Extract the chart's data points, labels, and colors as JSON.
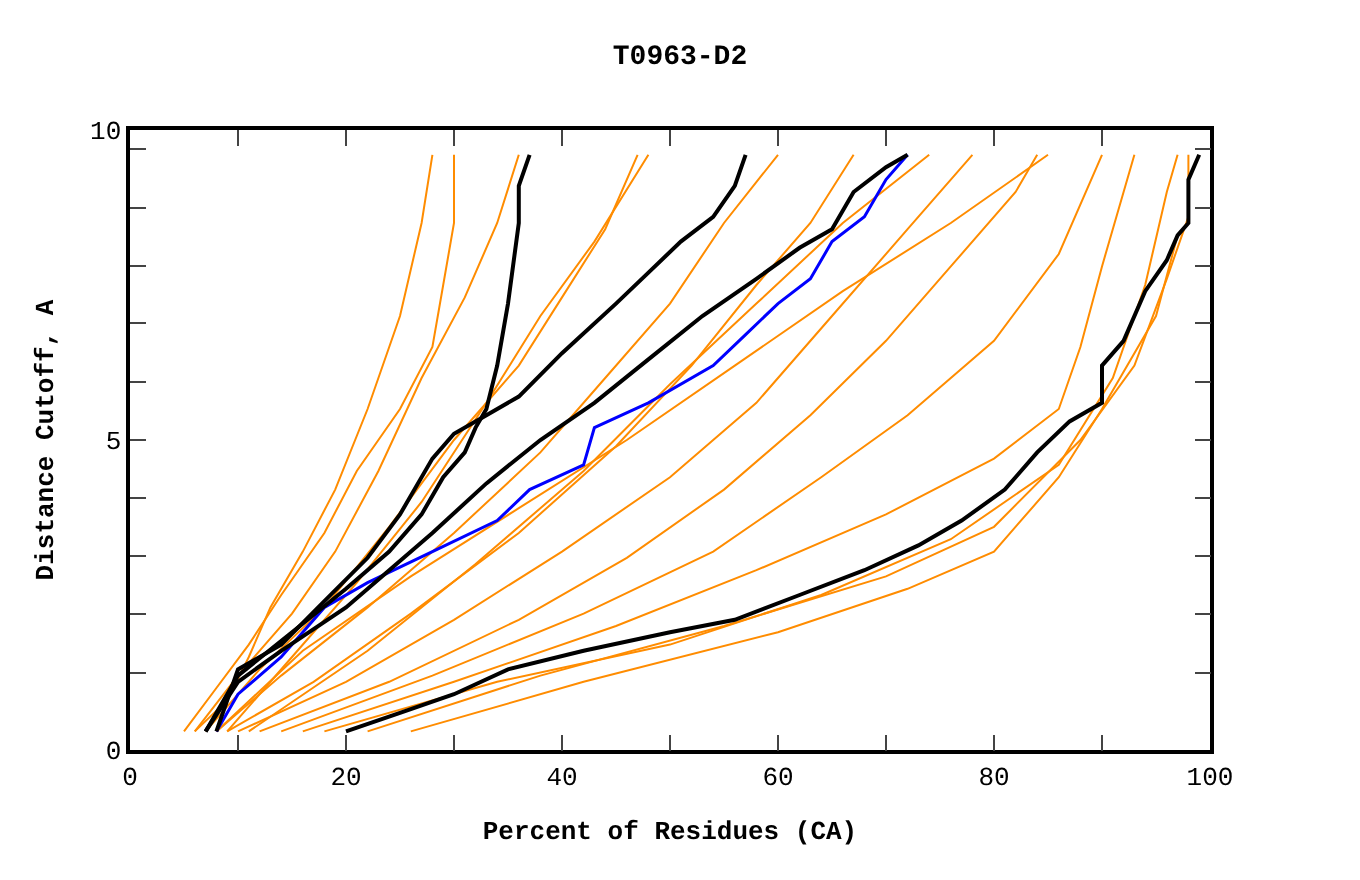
{
  "chart_data": {
    "type": "line",
    "title": "T0963-D2",
    "xlabel": "Percent of Residues (CA)",
    "ylabel": "Distance Cutoff, A",
    "xlim": [
      0,
      100
    ],
    "ylim": [
      0,
      10
    ],
    "xticks": [
      0,
      {
        "value": 10,
        "label": null
      },
      20,
      {
        "value": 30,
        "label": null
      },
      40,
      {
        "value": 50,
        "label": null
      },
      60,
      {
        "value": 70,
        "label": null
      },
      80,
      {
        "value": 90,
        "label": null
      },
      100
    ],
    "yticks": [
      0,
      {
        "value": 1.25,
        "label": null
      },
      {
        "value": 2.19,
        "label": null
      },
      {
        "value": 3.13,
        "label": null
      },
      {
        "value": 4.06,
        "label": null
      },
      5,
      {
        "value": 5.94,
        "label": null
      },
      {
        "value": 6.88,
        "label": null
      },
      {
        "value": 7.81,
        "label": null
      },
      {
        "value": 8.75,
        "label": null
      },
      {
        "value": 9.69,
        "label": null
      },
      10
    ],
    "marker": "none",
    "line_style": "solid",
    "series": [
      {
        "color": "#ff8c00",
        "x": [
          5,
          8,
          11,
          14,
          18,
          21,
          25,
          28,
          29,
          30,
          30
        ],
        "values": [
          0.3,
          1,
          1.7,
          2.5,
          3.5,
          4.5,
          5.5,
          6.5,
          7.5,
          8.5,
          9.6
        ]
      },
      {
        "color": "#ff8c00",
        "x": [
          6,
          10,
          15,
          19,
          23,
          27,
          31,
          34,
          36
        ],
        "values": [
          0.3,
          1.2,
          2.2,
          3.2,
          4.5,
          6,
          7.3,
          8.5,
          9.6
        ]
      },
      {
        "color": "#ff8c00",
        "x": [
          7,
          12,
          18,
          24,
          30,
          36,
          40,
          44,
          47
        ],
        "values": [
          0.3,
          1.3,
          2.3,
          3.6,
          5,
          6.2,
          7.3,
          8.4,
          9.6
        ]
      },
      {
        "color": "#ff8c00",
        "x": [
          8,
          14,
          22,
          30,
          38,
          44,
          50,
          55,
          60
        ],
        "values": [
          0.3,
          1.2,
          2.3,
          3.5,
          4.8,
          6,
          7.2,
          8.5,
          9.6
        ]
      },
      {
        "color": "#ff8c00",
        "x": [
          9,
          17,
          26,
          36,
          45,
          52,
          58,
          63,
          67
        ],
        "values": [
          0.3,
          1.1,
          2.2,
          3.5,
          4.9,
          6.2,
          7.5,
          8.5,
          9.6
        ]
      },
      {
        "color": "#ff8c00",
        "x": [
          10,
          20,
          30,
          40,
          50,
          58,
          65,
          72,
          78
        ],
        "values": [
          0.3,
          1.1,
          2.1,
          3.2,
          4.4,
          5.6,
          7,
          8.4,
          9.6
        ]
      },
      {
        "color": "#ff8c00",
        "x": [
          12,
          24,
          36,
          46,
          55,
          63,
          70,
          76,
          82,
          84
        ],
        "values": [
          0.3,
          1.1,
          2.1,
          3.1,
          4.2,
          5.4,
          6.6,
          7.8,
          9,
          9.6
        ]
      },
      {
        "color": "#ff8c00",
        "x": [
          14,
          28,
          42,
          54,
          64,
          72,
          80,
          86,
          90
        ],
        "values": [
          0.3,
          1.2,
          2.2,
          3.2,
          4.4,
          5.4,
          6.6,
          8,
          9.6
        ]
      },
      {
        "color": "#ff8c00",
        "x": [
          16,
          30,
          45,
          58,
          70,
          80,
          86,
          88,
          90,
          93
        ],
        "values": [
          0.3,
          1.1,
          2,
          2.9,
          3.8,
          4.7,
          5.5,
          6.5,
          7.8,
          9.6
        ]
      },
      {
        "color": "#ff8c00",
        "x": [
          18,
          34,
          50,
          64,
          76,
          86,
          91,
          94,
          96,
          97
        ],
        "values": [
          0.3,
          1.1,
          1.7,
          2.5,
          3.4,
          4.6,
          6,
          7.5,
          9,
          9.6
        ]
      },
      {
        "color": "#ff8c00",
        "x": [
          22,
          38,
          55,
          70,
          80,
          88,
          93,
          96,
          98,
          98
        ],
        "values": [
          0.3,
          1.2,
          2,
          2.8,
          3.6,
          5,
          6.2,
          7.6,
          8.6,
          9.6
        ]
      },
      {
        "color": "#ff8c00",
        "x": [
          26,
          42,
          60,
          72,
          80,
          86,
          90,
          95,
          97
        ],
        "values": [
          0.3,
          1.1,
          1.9,
          2.6,
          3.2,
          4.4,
          5.5,
          7,
          8.3
        ]
      },
      {
        "color": "#ff8c00",
        "x": [
          6,
          9,
          11,
          13,
          16,
          19,
          22,
          25,
          27,
          28
        ],
        "values": [
          0.3,
          0.8,
          1.5,
          2.3,
          3.2,
          4.2,
          5.5,
          7,
          8.5,
          9.6
        ]
      },
      {
        "color": "#ff8c00",
        "x": [
          9,
          15,
          21,
          27,
          33,
          38,
          43,
          48
        ],
        "values": [
          0.3,
          1.5,
          2.7,
          4,
          5.6,
          7,
          8.2,
          9.6
        ]
      },
      {
        "color": "#ff8c00",
        "x": [
          11,
          22,
          32,
          42,
          50,
          58,
          66,
          74
        ],
        "values": [
          0.3,
          1.6,
          3,
          4.5,
          5.9,
          7.2,
          8.5,
          9.6
        ]
      },
      {
        "color": "#ff8c00",
        "x": [
          8,
          16,
          26,
          36,
          46,
          56,
          66,
          76,
          85
        ],
        "values": [
          0.3,
          1.6,
          2.8,
          3.9,
          5,
          6.2,
          7.4,
          8.5,
          9.6
        ]
      },
      {
        "color": "#0000ff",
        "x": [
          8,
          10,
          14,
          18,
          22,
          28,
          34,
          37,
          42,
          43,
          48,
          54,
          57,
          60,
          63,
          65,
          68,
          70,
          72
        ],
        "values": [
          0.3,
          0.9,
          1.5,
          2.3,
          2.7,
          3.2,
          3.7,
          4.2,
          4.6,
          5.2,
          5.6,
          6.2,
          6.7,
          7.2,
          7.6,
          8.2,
          8.6,
          9.2,
          9.6
        ]
      },
      {
        "color": "#000000",
        "x": [
          7,
          10,
          15,
          20,
          24,
          27,
          29,
          31,
          32,
          33,
          34,
          35,
          36,
          36,
          37
        ],
        "values": [
          0.3,
          1.2,
          1.9,
          2.6,
          3.2,
          3.8,
          4.4,
          4.8,
          5.2,
          5.5,
          6.2,
          7.2,
          8.5,
          9.1,
          9.6
        ]
      },
      {
        "color": "#000000",
        "x": [
          8,
          10,
          14,
          18,
          22,
          25,
          28,
          30,
          33,
          36,
          40,
          45,
          48,
          51,
          54,
          56,
          57
        ],
        "values": [
          0.3,
          1.3,
          1.7,
          2.4,
          3.1,
          3.8,
          4.7,
          5.1,
          5.4,
          5.7,
          6.4,
          7.2,
          7.7,
          8.2,
          8.6,
          9.1,
          9.6
        ]
      },
      {
        "color": "#000000",
        "x": [
          7,
          10,
          14,
          20,
          24,
          28,
          33,
          38,
          43,
          48,
          53,
          58,
          62,
          65,
          67,
          70,
          72
        ],
        "values": [
          0.3,
          1.1,
          1.6,
          2.3,
          2.9,
          3.5,
          4.3,
          5,
          5.6,
          6.3,
          7,
          7.6,
          8.1,
          8.4,
          9,
          9.4,
          9.6
        ]
      },
      {
        "color": "#000000",
        "x": [
          20,
          25,
          30,
          35,
          42,
          50,
          56,
          62,
          68,
          73,
          77,
          81,
          84,
          87,
          90,
          90,
          92,
          94,
          96,
          97,
          98,
          98,
          99
        ],
        "values": [
          0.3,
          0.6,
          0.9,
          1.3,
          1.6,
          1.9,
          2.1,
          2.5,
          2.9,
          3.3,
          3.7,
          4.2,
          4.8,
          5.3,
          5.6,
          6.2,
          6.6,
          7.4,
          7.9,
          8.3,
          8.5,
          9.2,
          9.6
        ]
      }
    ]
  }
}
